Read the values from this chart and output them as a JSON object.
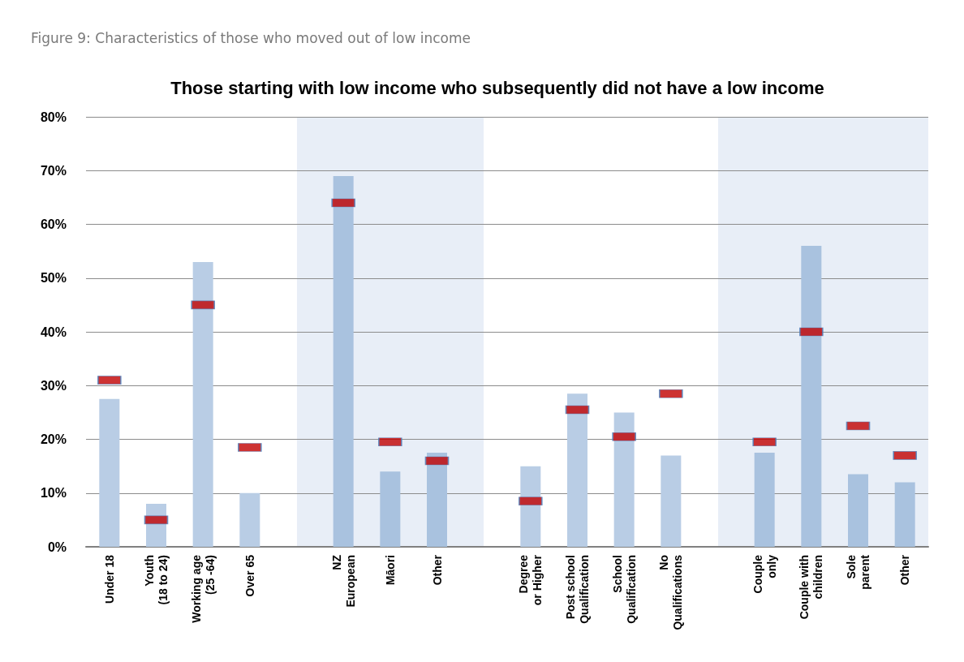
{
  "chart_data": {
    "type": "bar",
    "title": "Those starting with low income who subsequently did not have a low income",
    "annotations": [
      "Figure 9: Characteristics of those who moved out of low income"
    ],
    "categories": [
      "Under 18",
      "Youth\n(18 to 24)",
      "Working age\n(25 -64)",
      "Over 65",
      null,
      "NZ\nEuropean",
      "Māori",
      "Other",
      null,
      "Degree\nor Higher",
      "Post school\nQualification",
      "School\nQualification",
      "No\nQualifications",
      null,
      "Couple\nonly",
      "Couple with\nchildren",
      "Sole\nparent",
      "Other"
    ],
    "series": [
      {
        "type": "bar",
        "colors": [
          "#b9cde5",
          "#b9cde5",
          "#b9cde5",
          "#b9cde5",
          null,
          "#a9c2df",
          "#a9c2df",
          "#a9c2df",
          null,
          "#b9cde5",
          "#b9cde5",
          "#b9cde5",
          "#b9cde5",
          null,
          "#a9c2df",
          "#a9c2df",
          "#a9c2df",
          "#a9c2df"
        ],
        "values": [
          27.5,
          8,
          53,
          10,
          null,
          69,
          14,
          17.5,
          null,
          15,
          28.5,
          25,
          17,
          null,
          17.5,
          56,
          13.5,
          12
        ]
      },
      {
        "type": "scatter",
        "color": "#c00000",
        "values": [
          31,
          5,
          45,
          18.5,
          null,
          64,
          19.5,
          16,
          null,
          8.5,
          25.5,
          20.5,
          28.5,
          null,
          19.5,
          40,
          22.5,
          17
        ]
      }
    ],
    "ylim": [
      0,
      80
    ],
    "yticks": [
      {
        "value": 0,
        "label": "0%"
      },
      {
        "value": 10,
        "label": "10%"
      },
      {
        "value": 20,
        "label": "20%"
      },
      {
        "value": 30,
        "label": "30%"
      },
      {
        "value": 40,
        "label": "40%"
      },
      {
        "value": 50,
        "label": "50%"
      },
      {
        "value": 60,
        "label": "60%"
      },
      {
        "value": 70,
        "label": "70%"
      },
      {
        "value": 80,
        "label": "80%"
      }
    ],
    "grid": "y"
  }
}
